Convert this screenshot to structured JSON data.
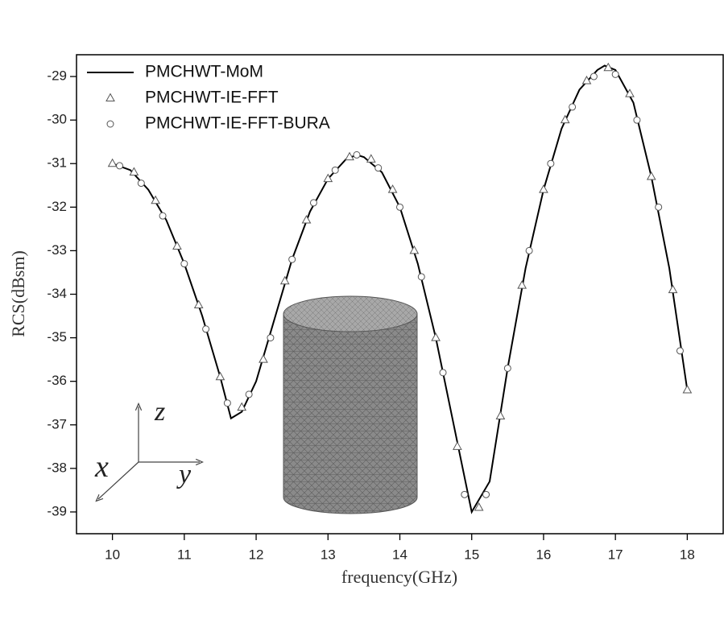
{
  "chart_data": {
    "type": "line-scatter",
    "xlabel": "frequency(GHz)",
    "ylabel": "RCS(dBsm)",
    "xlim": [
      9.5,
      18.5
    ],
    "ylim": [
      -39.5,
      -28.5
    ],
    "xticks": [
      10,
      11,
      12,
      13,
      14,
      15,
      16,
      17,
      18
    ],
    "yticks": [
      -29,
      -30,
      -31,
      -32,
      -33,
      -34,
      -35,
      -36,
      -37,
      -38,
      -39
    ],
    "legend": "upper-left",
    "annotations": [
      "z",
      "x",
      "y"
    ],
    "series": [
      {
        "name": "PMCHWT-MoM",
        "style": "line",
        "color": "#000000",
        "x": [
          10,
          10.25,
          10.5,
          10.75,
          11,
          11.25,
          11.5,
          11.65,
          11.8,
          12,
          12.25,
          12.5,
          12.75,
          13,
          13.25,
          13.4,
          13.5,
          13.75,
          14,
          14.25,
          14.5,
          14.75,
          15,
          15.25,
          15.5,
          15.75,
          16,
          16.25,
          16.5,
          16.75,
          16.85,
          17,
          17.25,
          17.5,
          17.75,
          18
        ],
        "values": [
          -31.0,
          -31.15,
          -31.6,
          -32.3,
          -33.3,
          -34.5,
          -35.9,
          -36.85,
          -36.7,
          -36.0,
          -34.6,
          -33.2,
          -32.1,
          -31.35,
          -30.9,
          -30.8,
          -30.85,
          -31.2,
          -32.0,
          -33.3,
          -35.0,
          -37.0,
          -39.0,
          -38.3,
          -35.7,
          -33.4,
          -31.6,
          -30.2,
          -29.3,
          -28.85,
          -28.75,
          -28.85,
          -29.6,
          -31.3,
          -33.4,
          -36.2
        ]
      },
      {
        "name": "PMCHWT-IE-FFT",
        "style": "triangle",
        "color": "#555555",
        "x": [
          10,
          10.3,
          10.6,
          10.9,
          11.2,
          11.5,
          11.8,
          12.1,
          12.4,
          12.7,
          13.0,
          13.3,
          13.6,
          13.9,
          14.2,
          14.5,
          14.8,
          15.1,
          15.4,
          15.7,
          16.0,
          16.3,
          16.6,
          16.9,
          17.2,
          17.5,
          17.8,
          18.0
        ],
        "values": [
          -31.0,
          -31.2,
          -31.85,
          -32.9,
          -34.25,
          -35.9,
          -36.6,
          -35.5,
          -33.7,
          -32.3,
          -31.35,
          -30.85,
          -30.9,
          -31.6,
          -33.0,
          -35.0,
          -37.5,
          -38.9,
          -36.8,
          -33.8,
          -31.6,
          -30.0,
          -29.1,
          -28.8,
          -29.4,
          -31.3,
          -33.9,
          -36.2
        ]
      },
      {
        "name": "PMCHWT-IE-FFT-BURA",
        "style": "circle",
        "color": "#555555",
        "x": [
          10.1,
          10.4,
          10.7,
          11.0,
          11.3,
          11.6,
          11.9,
          12.2,
          12.5,
          12.8,
          13.1,
          13.4,
          13.7,
          14.0,
          14.3,
          14.6,
          14.9,
          15.2,
          15.5,
          15.8,
          16.1,
          16.4,
          16.7,
          17.0,
          17.3,
          17.6,
          17.9
        ],
        "values": [
          -31.05,
          -31.45,
          -32.2,
          -33.3,
          -34.8,
          -36.5,
          -36.3,
          -35.0,
          -33.2,
          -31.9,
          -31.15,
          -30.8,
          -31.1,
          -32.0,
          -33.6,
          -35.8,
          -38.6,
          -38.6,
          -35.7,
          -33.0,
          -31.0,
          -29.7,
          -29.0,
          -28.95,
          -30.0,
          -32.0,
          -35.3
        ]
      }
    ]
  }
}
